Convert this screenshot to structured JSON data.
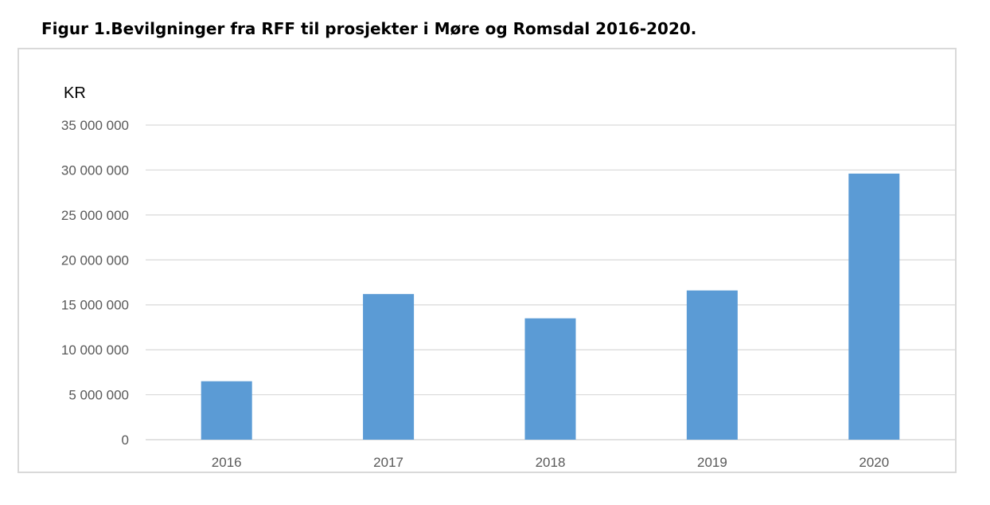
{
  "figure_title": "Figur 1.Bevilgninger fra RFF til prosjekter i Møre og Romsdal 2016-2020.",
  "chart_data": {
    "type": "bar",
    "title": "",
    "ylabel": "KR",
    "xlabel": "",
    "categories": [
      "2016",
      "2017",
      "2018",
      "2019",
      "2020"
    ],
    "values": [
      6500000,
      16200000,
      13500000,
      16600000,
      29600000
    ],
    "ylim": [
      0,
      35000000
    ],
    "yticks": [
      0,
      5000000,
      10000000,
      15000000,
      20000000,
      25000000,
      30000000,
      35000000
    ],
    "ytick_labels": [
      "0",
      "5 000 000",
      "10 000 000",
      "15 000 000",
      "20 000 000",
      "25 000 000",
      "30 000 000",
      "35 000 000"
    ],
    "grid": true,
    "bar_color": "#5b9bd5",
    "grid_color": "#d9d9d9",
    "text_color": "#595959"
  }
}
